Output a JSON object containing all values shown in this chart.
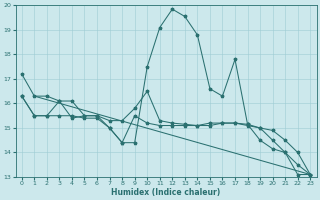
{
  "xlabel": "Humidex (Indice chaleur)",
  "bg_color": "#cce8ec",
  "grid_color": "#9ecdd4",
  "line_color": "#2a7070",
  "xlim": [
    -0.5,
    23.5
  ],
  "ylim": [
    13,
    20
  ],
  "xticks": [
    0,
    1,
    2,
    3,
    4,
    5,
    6,
    7,
    8,
    9,
    10,
    11,
    12,
    13,
    14,
    15,
    16,
    17,
    18,
    19,
    20,
    21,
    22,
    23
  ],
  "yticks": [
    13,
    14,
    15,
    16,
    17,
    18,
    19,
    20
  ],
  "line1_x": [
    0,
    1,
    2,
    3,
    4,
    5,
    6,
    7,
    8,
    9,
    10,
    11,
    12,
    13,
    14,
    15,
    16,
    17,
    18,
    19,
    20,
    21,
    22,
    23
  ],
  "line1_y": [
    17.2,
    16.3,
    16.3,
    16.1,
    15.4,
    15.5,
    15.5,
    15.0,
    14.4,
    14.4,
    17.5,
    19.1,
    19.85,
    19.55,
    18.8,
    16.6,
    16.3,
    17.8,
    15.15,
    14.5,
    14.15,
    14.0,
    13.1,
    13.1
  ],
  "line2_x": [
    0,
    1,
    2,
    3,
    4,
    5,
    6,
    7,
    8,
    9,
    10,
    11,
    12,
    13,
    14,
    15,
    16,
    17,
    18,
    19,
    20,
    21,
    22,
    23
  ],
  "line2_y": [
    16.3,
    15.5,
    15.5,
    16.1,
    16.1,
    15.5,
    15.5,
    15.3,
    15.3,
    15.8,
    16.5,
    15.3,
    15.2,
    15.15,
    15.1,
    15.1,
    15.2,
    15.2,
    15.15,
    15.0,
    14.9,
    14.5,
    14.0,
    13.1
  ],
  "line3_x": [
    1,
    23
  ],
  "line3_y": [
    16.3,
    13.1
  ],
  "line4_x": [
    0,
    1,
    2,
    3,
    4,
    5,
    6,
    7,
    8,
    9,
    10,
    11,
    12,
    13,
    14,
    15,
    16,
    17,
    18,
    19,
    20,
    21,
    22,
    23
  ],
  "line4_y": [
    16.3,
    15.5,
    15.5,
    15.5,
    15.5,
    15.4,
    15.4,
    15.0,
    14.4,
    15.5,
    15.2,
    15.1,
    15.1,
    15.1,
    15.1,
    15.2,
    15.2,
    15.2,
    15.1,
    15.0,
    14.5,
    14.0,
    13.5,
    13.1
  ]
}
